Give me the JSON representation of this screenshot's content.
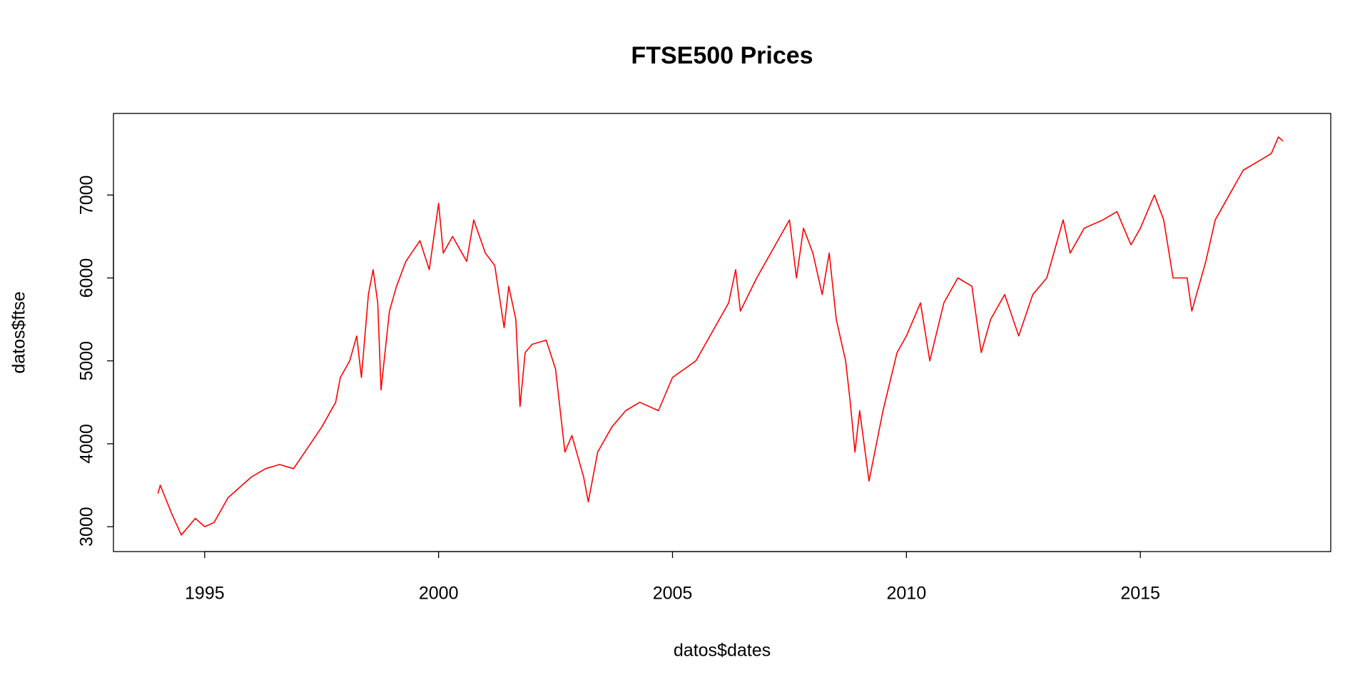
{
  "chart_data": {
    "type": "line",
    "title": "FTSE500 Prices",
    "xlabel": "datos$dates",
    "ylabel": "datos$ftse",
    "x": [
      1994.0,
      1994.05,
      1994.3,
      1994.5,
      1994.8,
      1995.0,
      1995.2,
      1995.5,
      1995.8,
      1996.0,
      1996.3,
      1996.6,
      1996.9,
      1997.2,
      1997.5,
      1997.8,
      1997.9,
      1998.1,
      1998.25,
      1998.35,
      1998.5,
      1998.6,
      1998.7,
      1998.77,
      1998.95,
      1999.1,
      1999.3,
      1999.6,
      1999.8,
      2000.0,
      2000.1,
      2000.3,
      2000.6,
      2000.75,
      2001.0,
      2001.2,
      2001.4,
      2001.5,
      2001.65,
      2001.74,
      2001.85,
      2002.0,
      2002.3,
      2002.5,
      2002.7,
      2002.85,
      2003.1,
      2003.2,
      2003.4,
      2003.7,
      2004.0,
      2004.3,
      2004.7,
      2005.0,
      2005.5,
      2005.8,
      2006.2,
      2006.35,
      2006.45,
      2006.8,
      2007.2,
      2007.5,
      2007.65,
      2007.8,
      2008.0,
      2008.2,
      2008.35,
      2008.5,
      2008.7,
      2008.8,
      2008.9,
      2009.0,
      2009.2,
      2009.5,
      2009.8,
      2010.0,
      2010.3,
      2010.5,
      2010.8,
      2011.1,
      2011.4,
      2011.6,
      2011.8,
      2012.1,
      2012.4,
      2012.7,
      2013.0,
      2013.35,
      2013.5,
      2013.8,
      2014.2,
      2014.5,
      2014.8,
      2015.0,
      2015.3,
      2015.5,
      2015.7,
      2016.0,
      2016.1,
      2016.4,
      2016.6,
      2016.9,
      2017.2,
      2017.5,
      2017.8,
      2017.95,
      2018.05
    ],
    "series": [
      {
        "name": "datos$ftse",
        "color": "#ff0000",
        "values": [
          3400,
          3500,
          3150,
          2900,
          3100,
          3000,
          3050,
          3350,
          3500,
          3600,
          3700,
          3750,
          3700,
          3950,
          4200,
          4500,
          4800,
          5000,
          5300,
          4800,
          5800,
          6100,
          5700,
          4650,
          5600,
          5900,
          6200,
          6450,
          6100,
          6900,
          6300,
          6500,
          6200,
          6700,
          6300,
          6150,
          5400,
          5900,
          5500,
          4450,
          5100,
          5200,
          5250,
          4900,
          3900,
          4100,
          3600,
          3300,
          3900,
          4200,
          4400,
          4500,
          4400,
          4800,
          5000,
          5300,
          5700,
          6100,
          5600,
          6000,
          6400,
          6700,
          6000,
          6600,
          6300,
          5800,
          6300,
          5500,
          5000,
          4500,
          3900,
          4400,
          3550,
          4400,
          5100,
          5300,
          5700,
          5000,
          5700,
          6000,
          5900,
          5100,
          5500,
          5800,
          5300,
          5800,
          6000,
          6700,
          6300,
          6600,
          6700,
          6800,
          6400,
          6600,
          7000,
          6700,
          6000,
          6000,
          5600,
          6200,
          6700,
          7000,
          7300,
          7400,
          7500,
          7700,
          7650
        ]
      }
    ],
    "xlim": [
      1993.05,
      2019.07
    ],
    "xticks": [
      1995,
      2000,
      2005,
      2010,
      2015
    ],
    "ylim": [
      2700,
      7984
    ],
    "yticks": [
      3000,
      4000,
      5000,
      6000,
      7000
    ]
  }
}
